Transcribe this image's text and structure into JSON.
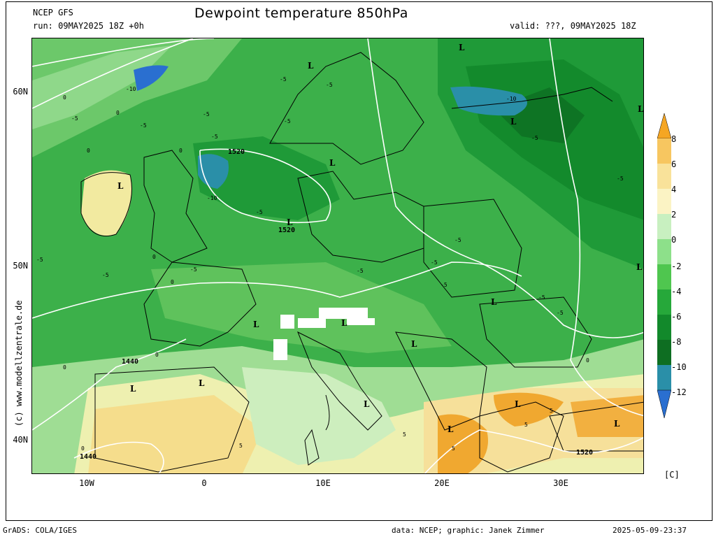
{
  "header": {
    "model": "NCEP GFS",
    "run": "run: 09MAY2025 18Z +0h",
    "title": "Dewpoint temperature 850hPa",
    "valid": "valid: ???, 09MAY2025 18Z"
  },
  "axes": {
    "lat_labels": [
      "60N",
      "50N",
      "40N"
    ],
    "lon_labels": [
      "10W",
      "0",
      "10E",
      "20E",
      "30E"
    ]
  },
  "colorbar": {
    "ticks": [
      "8",
      "6",
      "4",
      "2",
      "0",
      "-2",
      "-4",
      "-6",
      "-8",
      "-10",
      "-12"
    ],
    "colors": [
      "#f5a623",
      "#f7c660",
      "#f9e29a",
      "#fbf3c4",
      "#c8f0c0",
      "#8de08a",
      "#4fc64f",
      "#26a83a",
      "#12892b",
      "#0e6e22",
      "#2a8fa8",
      "#2a6fd0"
    ],
    "unit": "[C]"
  },
  "map_labels": {
    "lows": [
      "L",
      "L",
      "L",
      "L",
      "L",
      "L",
      "L",
      "L",
      "L",
      "L",
      "L",
      "L",
      "L",
      "L",
      "L",
      "L",
      "L",
      "L"
    ],
    "isohypses": [
      "1520",
      "1520",
      "1440",
      "1440",
      "1520"
    ],
    "contours": [
      "-10",
      "-10",
      "-10",
      "-5",
      "-5",
      "-5",
      "-5",
      "-5",
      "-5",
      "-5",
      "-5",
      "-5",
      "-5",
      "-5",
      "-5",
      "-5",
      "-5",
      "-5",
      "-5",
      "-5",
      "-5",
      "-5",
      "0",
      "0",
      "0",
      "0",
      "0",
      "0",
      "0",
      "0",
      "0",
      "0",
      "5",
      "5",
      "5",
      "5",
      "5"
    ]
  },
  "side_text": "(c) www.modellzentrale.de",
  "footer": {
    "left": "GrADS: COLA/IGES",
    "center": "data: NCEP; graphic: Janek Zimmer",
    "right": "2025-05-09-23:37"
  }
}
